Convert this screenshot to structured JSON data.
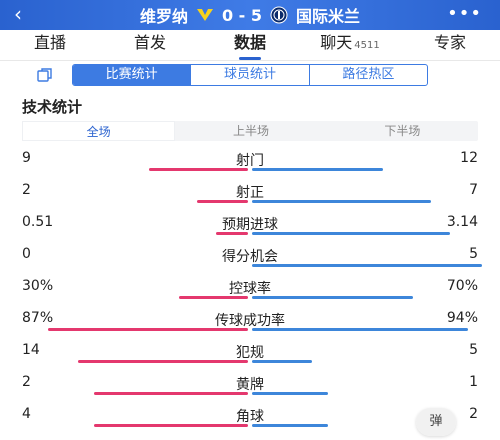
{
  "header": {
    "home_team": "维罗纳",
    "away_team": "国际米兰",
    "score": "0 - 5",
    "back_icon": "back-chevron-icon",
    "more_icon": "more-dots-icon"
  },
  "tabs": [
    {
      "label": "直播"
    },
    {
      "label": "首发"
    },
    {
      "label": "数据"
    },
    {
      "label": "聊天",
      "badge": "4511"
    },
    {
      "label": "专家"
    }
  ],
  "sub_tabs": [
    "比赛统计",
    "球员统计",
    "路径热区"
  ],
  "section_title": "技术统计",
  "periods": [
    "全场",
    "上半场",
    "下半场"
  ],
  "colors": {
    "home": "#e4386e",
    "away": "#3d86da",
    "accent": "#2a62cf"
  },
  "stats": [
    {
      "name": "射门",
      "home": "9",
      "away": "12",
      "home_frac": 0.43,
      "away_frac": 0.57
    },
    {
      "name": "射正",
      "home": "2",
      "away": "7",
      "home_frac": 0.22,
      "away_frac": 0.78
    },
    {
      "name": "预期进球",
      "home": "0.51",
      "away": "3.14",
      "home_frac": 0.14,
      "away_frac": 0.86
    },
    {
      "name": "得分机会",
      "home": "0",
      "away": "5",
      "home_frac": 0.0,
      "away_frac": 1.0
    },
    {
      "name": "控球率",
      "home": "30%",
      "away": "70%",
      "home_frac": 0.3,
      "away_frac": 0.7
    },
    {
      "name": "传球成功率",
      "home": "87%",
      "away": "94%",
      "home_frac": 0.87,
      "away_frac": 0.94
    },
    {
      "name": "犯规",
      "home": "14",
      "away": "5",
      "home_frac": 0.74,
      "away_frac": 0.26
    },
    {
      "name": "黄牌",
      "home": "2",
      "away": "1",
      "home_frac": 0.67,
      "away_frac": 0.33
    },
    {
      "name": "角球",
      "home": "4",
      "away": "2",
      "home_frac": 0.67,
      "away_frac": 0.33
    }
  ],
  "float_button": "弹"
}
